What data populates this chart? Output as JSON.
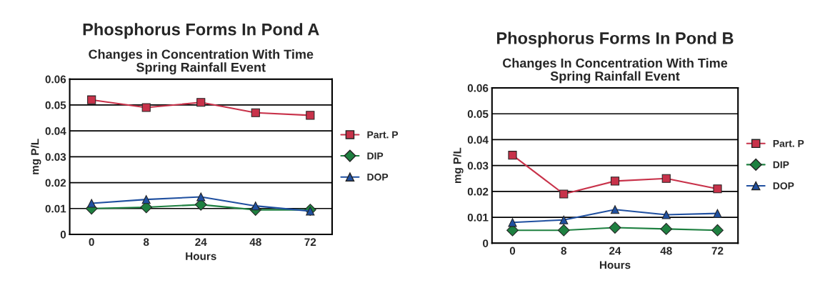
{
  "chart_data": [
    {
      "type": "line",
      "title": "Phosphorus Forms In Pond A",
      "subtitle": "Changes in Concentration With Time\nSpring Rainfall Event",
      "xlabel": "Hours",
      "ylabel": "mg P/L",
      "categories": [
        "0",
        "8",
        "24",
        "48",
        "72"
      ],
      "ylim": [
        0,
        0.06
      ],
      "yticks": [
        {
          "value": 0,
          "label": "0"
        },
        0.01,
        0.02,
        0.03,
        0.04,
        0.05,
        0.06
      ],
      "grid": "y",
      "legend": "right",
      "series": [
        {
          "name": "Part. P",
          "color": "#c8324a",
          "marker": "square",
          "values": [
            0.052,
            0.049,
            0.051,
            0.047,
            0.046
          ]
        },
        {
          "name": "DIP",
          "color": "#1e8040",
          "marker": "diamond",
          "values": [
            0.01,
            0.0105,
            0.0115,
            0.0095,
            0.0095
          ]
        },
        {
          "name": "DOP",
          "color": "#2050a0",
          "marker": "triangle",
          "values": [
            0.012,
            0.0135,
            0.0145,
            0.011,
            0.009
          ]
        }
      ]
    },
    {
      "type": "line",
      "title": "Phosphorus Forms In Pond B",
      "subtitle": "Changes In Concentration With Time\nSpring Rainfall Event",
      "xlabel": "Hours",
      "ylabel": "mg P/L",
      "categories": [
        "0",
        "8",
        "24",
        "48",
        "72"
      ],
      "ylim": [
        0,
        0.06
      ],
      "yticks": [
        {
          "value": 0,
          "label": "0"
        },
        0.01,
        0.02,
        0.03,
        0.04,
        0.05,
        0.06
      ],
      "grid": "y",
      "legend": "right",
      "series": [
        {
          "name": "Part. P",
          "color": "#c8324a",
          "marker": "square",
          "values": [
            0.034,
            0.019,
            0.024,
            0.025,
            0.021
          ]
        },
        {
          "name": "DIP",
          "color": "#1e8040",
          "marker": "diamond",
          "values": [
            0.005,
            0.005,
            0.006,
            0.0055,
            0.005
          ]
        },
        {
          "name": "DOP",
          "color": "#2050a0",
          "marker": "triangle",
          "values": [
            0.008,
            0.009,
            0.013,
            0.011,
            0.0115
          ]
        }
      ]
    }
  ]
}
